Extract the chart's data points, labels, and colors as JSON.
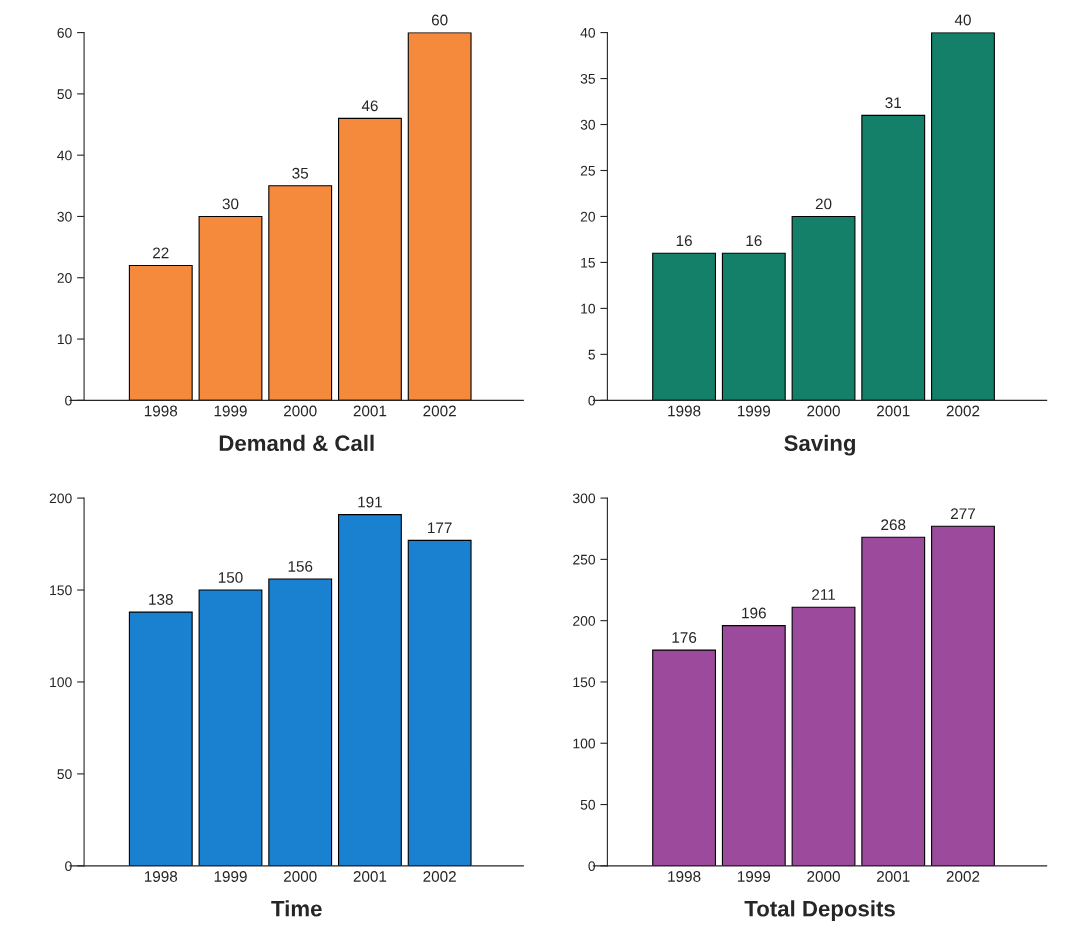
{
  "chart_data": [
    {
      "type": "bar",
      "title": "Demand & Call",
      "categories": [
        "1998",
        "1999",
        "2000",
        "2001",
        "2002"
      ],
      "values": [
        22,
        30,
        35,
        46,
        60
      ],
      "color": "#f58a3c",
      "ylim": [
        0,
        60
      ],
      "yticks": [
        0,
        10,
        20,
        30,
        40,
        50,
        60
      ],
      "data_labels": true,
      "grid": false,
      "legend": false
    },
    {
      "type": "bar",
      "title": "Saving",
      "categories": [
        "1998",
        "1999",
        "2000",
        "2001",
        "2002"
      ],
      "values": [
        16,
        16,
        20,
        31,
        40
      ],
      "color": "#14806a",
      "ylim": [
        0,
        40
      ],
      "yticks": [
        0,
        5,
        10,
        15,
        20,
        25,
        30,
        35,
        40
      ],
      "data_labels": true,
      "grid": false,
      "legend": false
    },
    {
      "type": "bar",
      "title": "Time",
      "categories": [
        "1998",
        "1999",
        "2000",
        "2001",
        "2002"
      ],
      "values": [
        138,
        150,
        156,
        191,
        177
      ],
      "color": "#1a80d0",
      "ylim": [
        0,
        200
      ],
      "yticks": [
        0,
        50,
        100,
        150,
        200
      ],
      "data_labels": true,
      "grid": false,
      "legend": false
    },
    {
      "type": "bar",
      "title": "Total Deposits",
      "categories": [
        "1998",
        "1999",
        "2000",
        "2001",
        "2002"
      ],
      "values": [
        176,
        196,
        211,
        268,
        277
      ],
      "color": "#9b4a9c",
      "ylim": [
        0,
        300
      ],
      "yticks": [
        0,
        50,
        100,
        150,
        200,
        250,
        300
      ],
      "data_labels": true,
      "grid": false,
      "legend": false
    }
  ]
}
